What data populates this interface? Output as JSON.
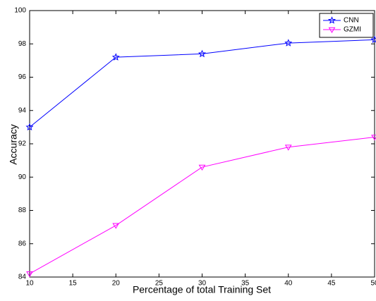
{
  "chart_data": {
    "type": "line",
    "x_label": "Percentage of total Training Set",
    "y_label": "Accuracy",
    "x": [
      10,
      20,
      30,
      40,
      50
    ],
    "series": [
      {
        "name": "CNN",
        "color": "#0000ff",
        "marker": "star",
        "values": [
          93.0,
          97.2,
          97.4,
          98.05,
          98.25
        ]
      },
      {
        "name": "GZMI",
        "color": "#ff00ff",
        "marker": "triangle-down",
        "values": [
          84.2,
          87.1,
          90.6,
          91.8,
          92.4
        ]
      }
    ],
    "xlim": [
      10,
      50
    ],
    "xticks": [
      10,
      15,
      20,
      25,
      30,
      35,
      40,
      45,
      50
    ],
    "ylim": [
      84,
      100
    ],
    "yticks": [
      84,
      86,
      88,
      90,
      92,
      94,
      96,
      98,
      100
    ],
    "grid": false,
    "legend": "upper right"
  }
}
